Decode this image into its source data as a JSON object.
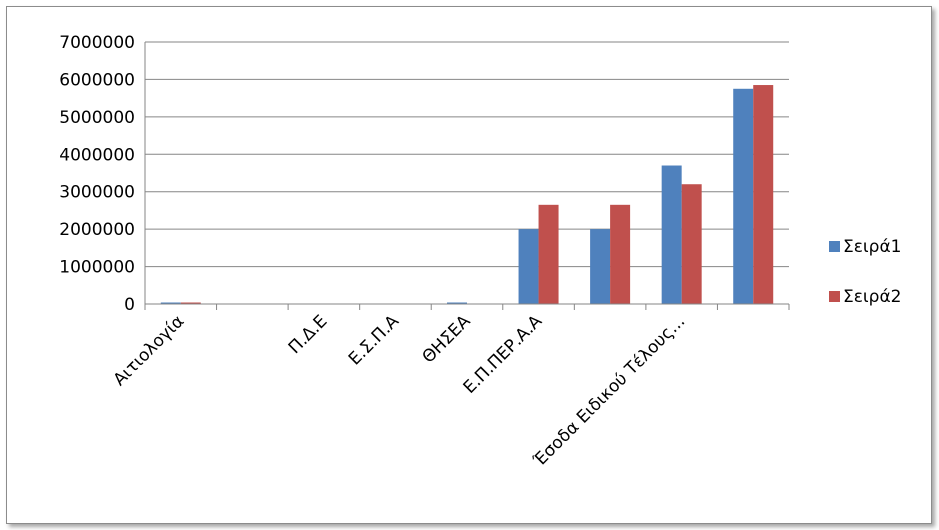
{
  "chart_data": {
    "type": "bar",
    "title": "",
    "xlabel": "",
    "ylabel": "",
    "ylim": [
      0,
      7000000
    ],
    "yticks": [
      0,
      1000000,
      2000000,
      3000000,
      4000000,
      5000000,
      6000000,
      7000000
    ],
    "ytick_labels": [
      "0",
      "1000000",
      "2000000",
      "3000000",
      "4000000",
      "5000000",
      "6000000",
      "7000000"
    ],
    "categories": [
      "Αιτιολογία",
      "",
      "Π.Δ.Ε",
      "Ε.Σ.Π.Α",
      "ΘΗΣΕΑ",
      "Ε.Π.ΠΕΡ.Α.Α",
      "",
      "Έσοδα Ειδικού Τέλους...",
      ""
    ],
    "series": [
      {
        "name": "Σειρά1",
        "color": "#4F81BD",
        "values": [
          40000,
          0,
          0,
          0,
          40000,
          2000000,
          2000000,
          3700000,
          5750000
        ]
      },
      {
        "name": "Σειρά2",
        "color": "#C0504D",
        "values": [
          40000,
          0,
          0,
          0,
          0,
          2650000,
          2650000,
          3200000,
          5850000
        ]
      }
    ],
    "grid": true,
    "legend_position": "right"
  }
}
